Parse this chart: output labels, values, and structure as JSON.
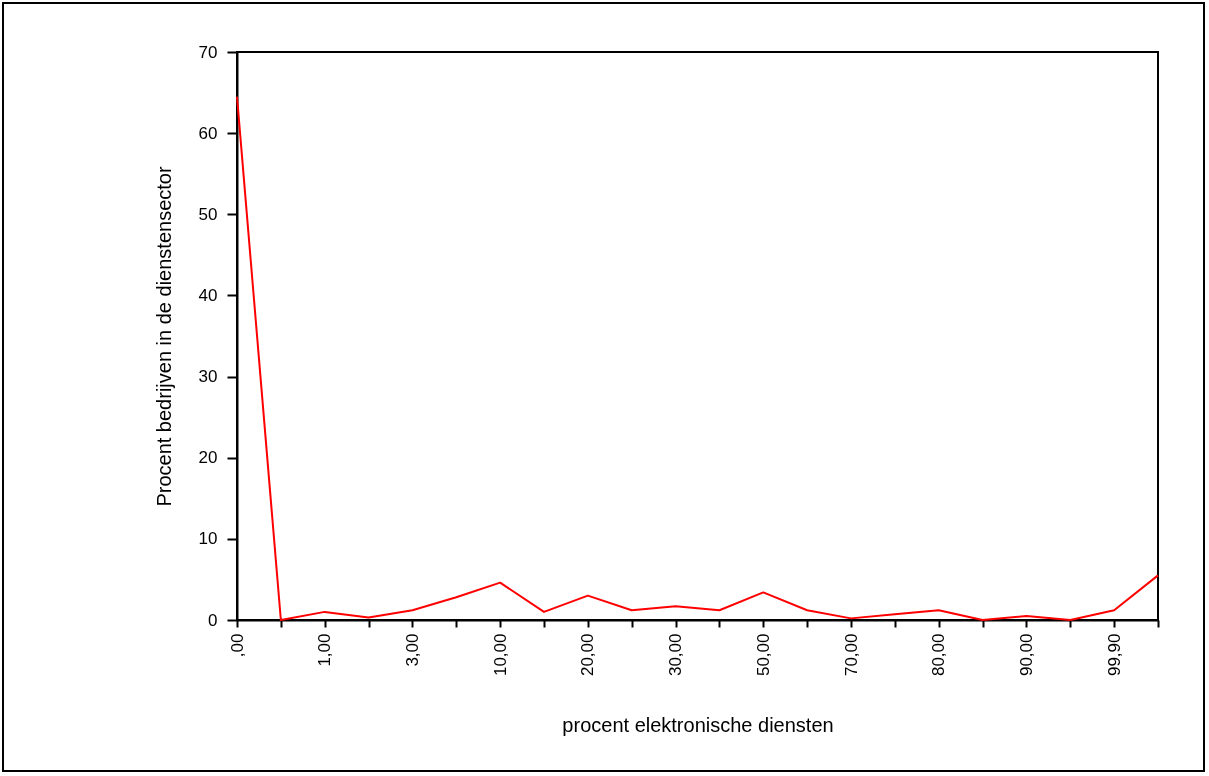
{
  "chart_data": {
    "type": "line",
    "xlabel": "procent elektronische diensten",
    "ylabel": "Procent bedrijven in de dienstensector",
    "categories": [
      ",00",
      null,
      "1,00",
      null,
      "3,00",
      null,
      "10,00",
      null,
      "20,00",
      null,
      "30,00",
      null,
      "50,00",
      null,
      "70,00",
      null,
      "80,00",
      null,
      "90,00",
      null,
      "99,90",
      null
    ],
    "series": [
      {
        "color": "#ff0000",
        "values": [
          64.5,
          0,
          1.0,
          0.3,
          1.2,
          2.8,
          4.6,
          1.0,
          3.0,
          1.2,
          1.7,
          1.2,
          3.4,
          1.2,
          0.2,
          0.7,
          1.2,
          0,
          0.5,
          0,
          1.2,
          5.5
        ]
      }
    ],
    "ylim": [
      0,
      70
    ],
    "yticks": [
      0,
      10,
      20,
      30,
      40,
      50,
      60,
      70
    ],
    "grid": false,
    "legend": false,
    "marker": "none",
    "line_style": "solid"
  }
}
